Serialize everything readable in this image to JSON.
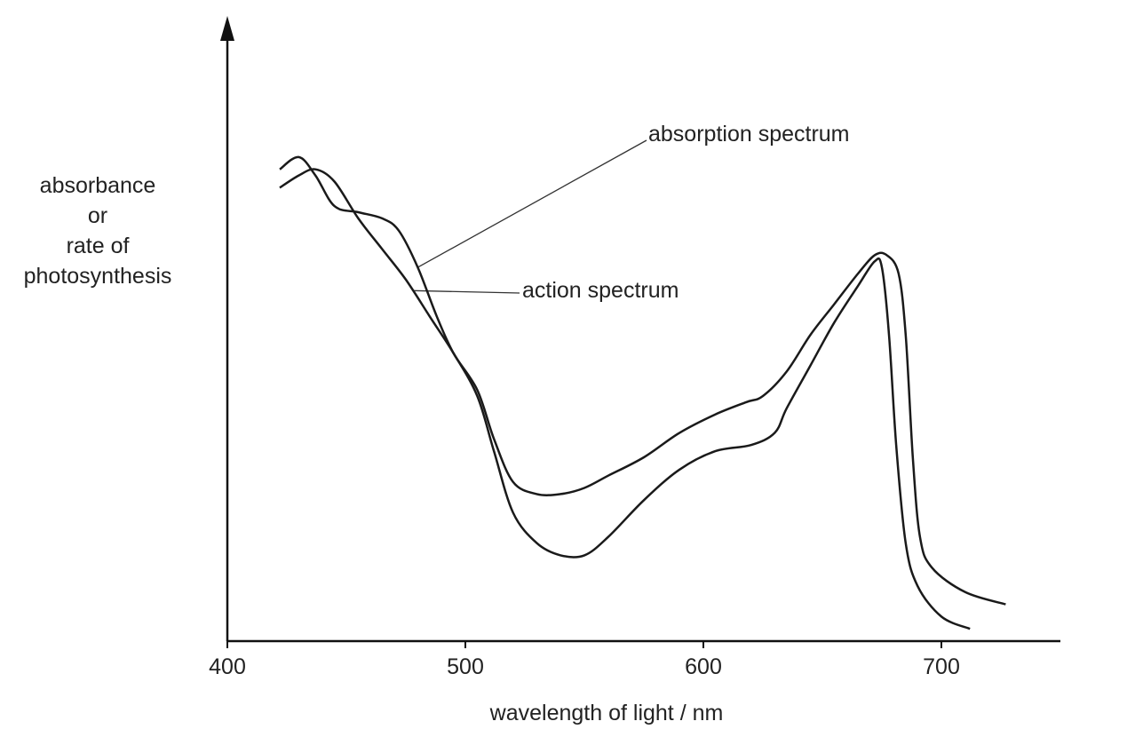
{
  "chart_data": {
    "type": "line",
    "title": "",
    "xlabel": "wavelength of light / nm",
    "ylabel_lines": [
      "absorbance",
      "or",
      "rate of",
      "photosynthesis"
    ],
    "xlim": [
      400,
      750
    ],
    "ylim": [
      0,
      1
    ],
    "x_ticks": [
      "400",
      "500",
      "600",
      "700"
    ],
    "grid": false,
    "series": [
      {
        "name": "absorption spectrum",
        "x": [
          422,
          430,
          437,
          445,
          455,
          465,
          472,
          480,
          488,
          495,
          505,
          512,
          520,
          530,
          540,
          550,
          560,
          575,
          590,
          605,
          618,
          625,
          635,
          645,
          655,
          665,
          672,
          677,
          682,
          685,
          688,
          691,
          696,
          710,
          727
        ],
        "y": [
          0.77,
          0.79,
          0.76,
          0.71,
          0.7,
          0.69,
          0.67,
          0.61,
          0.53,
          0.47,
          0.41,
          0.33,
          0.26,
          0.24,
          0.24,
          0.25,
          0.27,
          0.3,
          0.34,
          0.37,
          0.39,
          0.4,
          0.44,
          0.5,
          0.55,
          0.6,
          0.63,
          0.63,
          0.6,
          0.5,
          0.3,
          0.17,
          0.12,
          0.08,
          0.06
        ]
      },
      {
        "name": "action spectrum",
        "x": [
          422,
          430,
          437,
          445,
          455,
          465,
          475,
          485,
          495,
          505,
          512,
          520,
          530,
          540,
          550,
          560,
          575,
          590,
          605,
          620,
          630,
          635,
          645,
          655,
          665,
          672,
          675,
          678,
          681,
          685,
          690,
          700,
          712
        ],
        "y": [
          0.74,
          0.76,
          0.77,
          0.75,
          0.69,
          0.64,
          0.59,
          0.53,
          0.47,
          0.4,
          0.31,
          0.21,
          0.16,
          0.14,
          0.14,
          0.17,
          0.23,
          0.28,
          0.31,
          0.32,
          0.34,
          0.38,
          0.45,
          0.52,
          0.58,
          0.62,
          0.61,
          0.5,
          0.32,
          0.16,
          0.09,
          0.04,
          0.02
        ]
      }
    ],
    "annotations": [
      {
        "text": "absorption spectrum",
        "points_to_x": 480,
        "series": "absorption spectrum"
      },
      {
        "text": "action spectrum",
        "points_to_x": 478,
        "series": "action spectrum"
      }
    ]
  }
}
